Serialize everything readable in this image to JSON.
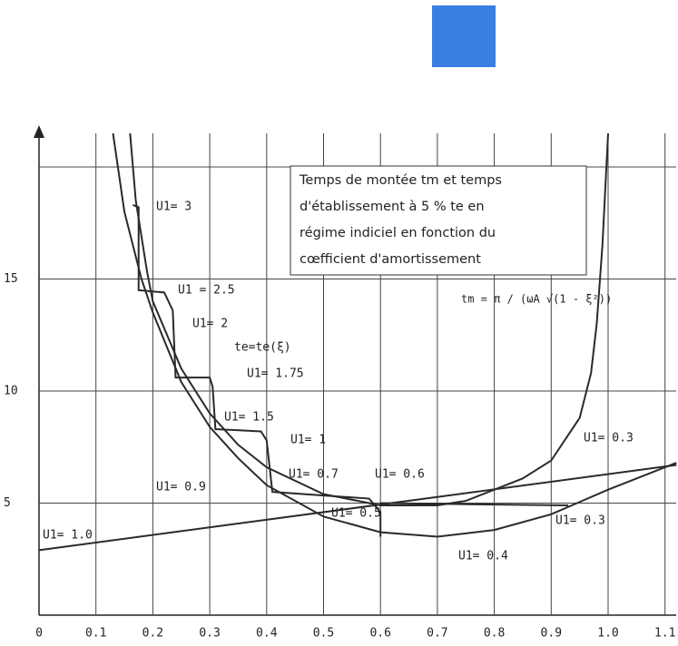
{
  "chart_data": {
    "type": "line",
    "xlim": [
      0,
      1.12
    ],
    "ylim": [
      0,
      21.5
    ],
    "xticks": [
      0,
      0.1,
      0.2,
      0.3,
      0.4,
      0.5,
      0.6,
      0.7,
      0.8,
      0.9,
      {
        "value": 1,
        "label": "1.0"
      },
      1.1
    ],
    "yticks": [
      5,
      10,
      15,
      {
        "value": 20,
        "label": null
      }
    ],
    "grid": true,
    "series": [
      {
        "color": "#2a2a2a",
        "x": [
          0.16,
          0.17,
          0.19,
          0.2,
          0.25,
          0.3,
          0.35,
          0.4,
          0.5,
          0.6,
          0.7,
          0.75,
          0.8,
          0.85,
          0.9,
          0.95,
          0.97,
          0.98,
          0.99,
          1.0
        ],
        "values": [
          21.5,
          18.5,
          15.3,
          14,
          11,
          9,
          7.6,
          6.6,
          5.4,
          4.9,
          4.9,
          5.1,
          5.6,
          6.1,
          6.9,
          8.8,
          10.8,
          13,
          16.5,
          21.5
        ]
      },
      {
        "color": "#2a2a2a",
        "x": [
          0.13,
          0.15,
          0.18,
          0.2,
          0.25,
          0.3,
          0.35,
          0.4,
          0.5,
          0.6,
          0.7,
          0.8,
          0.9,
          1.0,
          1.12
        ],
        "values": [
          21.5,
          18,
          15,
          13.5,
          10.4,
          8.4,
          7,
          5.8,
          4.4,
          3.7,
          3.5,
          3.8,
          4.5,
          5.6,
          6.8
        ]
      },
      {
        "color": "#2a2a2a",
        "x": [
          0,
          1.12
        ],
        "values": [
          2.9,
          6.7
        ]
      },
      {
        "color": "#2a2a2a",
        "x": [
          0.165,
          0.175,
          0.175,
          0.22,
          0.235,
          0.24,
          0.3,
          0.305,
          0.31,
          0.39,
          0.4,
          0.41,
          0.58,
          0.6,
          0.6
        ],
        "values": [
          18.3,
          18.2,
          14.5,
          14.4,
          13.6,
          10.6,
          10.6,
          10.2,
          8.3,
          8.2,
          7.8,
          5.5,
          5.2,
          4.6,
          3.5
        ]
      },
      {
        "color": "#2a2a2a",
        "x": [
          0.6,
          0.75,
          0.93
        ],
        "values": [
          5.0,
          4.95,
          4.9
        ]
      }
    ],
    "box": [
      "Temps de montée tm et temps",
      "d'établissement à 5 % te en",
      "régime indiciel en fonction du",
      "cœfficient d'amortissement"
    ],
    "formula": "tm = π / (ωA √(1 - ξ²))",
    "annotations": [
      "U1= 3",
      "U1 = 2.5",
      "U1= 2",
      "te=te(ξ)",
      "U1= 1.75",
      "U1= 1.5",
      "U1= 1",
      "U1= 0.7",
      "U1= 0.6",
      "U1= 0.9",
      "U1= 0.5",
      "U1= 1.0",
      "U1= 0.3",
      "U1= 0.3",
      "U1= 0.4"
    ]
  }
}
